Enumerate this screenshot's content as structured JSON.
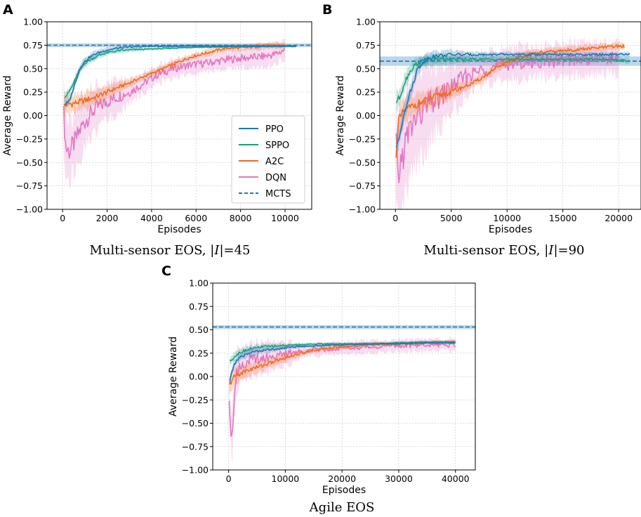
{
  "colors": {
    "PPO": "#1f77b4",
    "SPPO": "#17a37a",
    "A2C": "#f26b1d",
    "DQN": "#e377c2",
    "MCTS": "#1f77b4",
    "MCTS_band": "#a6c8e6"
  },
  "chart_data": [
    {
      "panel": "A",
      "type": "line",
      "caption_prefix": "Multi-sensor EOS, |",
      "caption_italic": "I",
      "caption_suffix": "|=45",
      "xlabel": "Episodes",
      "ylabel": "Average Reward",
      "xlim": [
        -700,
        11200
      ],
      "ylim": [
        -1.0,
        1.0
      ],
      "xticks": [
        0,
        2000,
        4000,
        6000,
        8000,
        10000
      ],
      "xtick_labels": [
        "0",
        "2000",
        "4000",
        "6000",
        "8000",
        "10000"
      ],
      "yticks": [
        -1.0,
        -0.75,
        -0.5,
        -0.25,
        0.0,
        0.25,
        0.5,
        0.75,
        1.0
      ],
      "ytick_labels": [
        "−1.00",
        "−0.75",
        "−0.50",
        "−0.25",
        "0.00",
        "0.25",
        "0.50",
        "0.75",
        "1.00"
      ],
      "grid": true,
      "legend": {
        "placement": "lower-right",
        "entries": [
          {
            "name": "PPO",
            "style": "solid"
          },
          {
            "name": "SPPO",
            "style": "solid"
          },
          {
            "name": "A2C",
            "style": "solid"
          },
          {
            "name": "DQN",
            "style": "solid"
          },
          {
            "name": "MCTS",
            "style": "dashed"
          }
        ]
      },
      "mcts": {
        "value": 0.75,
        "band": [
          0.73,
          0.77
        ]
      },
      "series": [
        {
          "name": "PPO",
          "x": [
            100,
            300,
            500,
            700,
            900,
            1200,
            1500,
            2000,
            2500,
            3000,
            4000,
            5000,
            6000,
            7000,
            8000,
            9000,
            10000,
            10500
          ],
          "y": [
            0.12,
            0.15,
            0.3,
            0.45,
            0.55,
            0.62,
            0.66,
            0.7,
            0.72,
            0.73,
            0.74,
            0.74,
            0.74,
            0.74,
            0.74,
            0.74,
            0.74,
            0.74
          ],
          "band": 0.02
        },
        {
          "name": "SPPO",
          "x": [
            100,
            200,
            400,
            600,
            800,
            1000,
            1300,
            1600,
            2000,
            2500,
            3000,
            4000,
            5000,
            6000,
            7000,
            8000,
            9000,
            10000,
            10500
          ],
          "y": [
            0.2,
            0.22,
            0.3,
            0.4,
            0.5,
            0.56,
            0.6,
            0.64,
            0.67,
            0.69,
            0.7,
            0.71,
            0.72,
            0.73,
            0.73,
            0.74,
            0.74,
            0.74,
            0.74
          ],
          "band": 0.02
        },
        {
          "name": "A2C",
          "x": [
            50,
            200,
            500,
            1000,
            1500,
            2000,
            2500,
            3000,
            3500,
            4000,
            4500,
            5000,
            5500,
            6000,
            6500,
            7000,
            7500,
            8000,
            8500,
            9000,
            9500,
            10000
          ],
          "y": [
            0.1,
            0.12,
            0.13,
            0.16,
            0.2,
            0.25,
            0.3,
            0.35,
            0.4,
            0.45,
            0.5,
            0.55,
            0.6,
            0.64,
            0.67,
            0.7,
            0.72,
            0.72,
            0.73,
            0.74,
            0.75,
            0.74
          ],
          "band": 0.04
        },
        {
          "name": "DQN",
          "x": [
            50,
            150,
            300,
            500,
            700,
            900,
            1200,
            1500,
            2000,
            2500,
            3000,
            3500,
            4000,
            4500,
            5000,
            5500,
            6000,
            6500,
            7000,
            7500,
            8000,
            8500,
            9000,
            9500,
            10000
          ],
          "y": [
            0.0,
            -0.35,
            -0.38,
            -0.3,
            -0.2,
            -0.1,
            0.0,
            0.08,
            0.15,
            0.2,
            0.25,
            0.32,
            0.4,
            0.46,
            0.5,
            0.53,
            0.55,
            0.56,
            0.58,
            0.6,
            0.61,
            0.62,
            0.63,
            0.65,
            0.7
          ],
          "band": 0.12
        }
      ]
    },
    {
      "panel": "B",
      "type": "line",
      "caption_prefix": "Multi-sensor EOS, |",
      "caption_italic": "I",
      "caption_suffix": "|=90",
      "xlabel": "Episodes",
      "ylabel": "Average Reward",
      "xlim": [
        -1400,
        22000
      ],
      "ylim": [
        -1.0,
        1.0
      ],
      "xticks": [
        0,
        5000,
        10000,
        15000,
        20000
      ],
      "xtick_labels": [
        "0",
        "5000",
        "10000",
        "15000",
        "20000"
      ],
      "yticks": [
        -1.0,
        -0.75,
        -0.5,
        -0.25,
        0.0,
        0.25,
        0.5,
        0.75,
        1.0
      ],
      "ytick_labels": [
        "−1.00",
        "−0.75",
        "−0.50",
        "−0.25",
        "0.00",
        "0.25",
        "0.50",
        "0.75",
        "1.00"
      ],
      "grid": true,
      "mcts": {
        "value": 0.58,
        "band": [
          0.53,
          0.63
        ]
      },
      "series": [
        {
          "name": "PPO",
          "x": [
            100,
            400,
            800,
            1200,
            1600,
            2000,
            2500,
            3000,
            4000,
            5000,
            7000,
            10000,
            13000,
            16000,
            19000,
            21000
          ],
          "y": [
            -0.35,
            -0.2,
            0.05,
            0.2,
            0.35,
            0.5,
            0.58,
            0.62,
            0.64,
            0.65,
            0.65,
            0.65,
            0.65,
            0.65,
            0.65,
            0.65
          ],
          "band": 0.04
        },
        {
          "name": "SPPO",
          "x": [
            100,
            400,
            800,
            1200,
            1600,
            2000,
            2500,
            3000,
            4000,
            5000,
            7000,
            10000,
            13000,
            16000,
            19000,
            21000
          ],
          "y": [
            0.15,
            0.2,
            0.35,
            0.45,
            0.52,
            0.56,
            0.58,
            0.59,
            0.6,
            0.6,
            0.6,
            0.6,
            0.6,
            0.6,
            0.6,
            0.58
          ],
          "band": 0.04
        },
        {
          "name": "A2C",
          "x": [
            50,
            300,
            800,
            1500,
            2500,
            3500,
            5000,
            6000,
            7000,
            8000,
            9000,
            10000,
            11000,
            12000,
            13000,
            14000,
            15000,
            16000,
            17000,
            18000,
            19000,
            20000,
            20500
          ],
          "y": [
            -0.4,
            -0.05,
            0.05,
            0.1,
            0.15,
            0.2,
            0.25,
            0.3,
            0.35,
            0.42,
            0.5,
            0.57,
            0.62,
            0.65,
            0.67,
            0.68,
            0.69,
            0.7,
            0.71,
            0.72,
            0.73,
            0.74,
            0.74
          ],
          "band": 0.05
        },
        {
          "name": "DQN",
          "x": [
            50,
            200,
            400,
            700,
            1000,
            1500,
            2000,
            2500,
            3000,
            4000,
            5000,
            6000,
            7000,
            8000,
            9000,
            10000,
            12000,
            14000,
            16000,
            18000,
            20000
          ],
          "y": [
            -0.3,
            -0.7,
            -0.55,
            -0.4,
            -0.25,
            -0.1,
            0.0,
            0.05,
            0.12,
            0.2,
            0.3,
            0.4,
            0.45,
            0.5,
            0.52,
            0.55,
            0.57,
            0.58,
            0.6,
            0.61,
            0.61
          ],
          "band": 0.2
        }
      ]
    },
    {
      "panel": "C",
      "type": "line",
      "caption_prefix": "Agile EOS",
      "caption_italic": "",
      "caption_suffix": "",
      "xlabel": "Episodes",
      "ylabel": "Average Reward",
      "xlim": [
        -2800,
        43500
      ],
      "ylim": [
        -1.0,
        1.0
      ],
      "xticks": [
        0,
        10000,
        20000,
        30000,
        40000
      ],
      "xtick_labels": [
        "0",
        "10000",
        "20000",
        "30000",
        "40000"
      ],
      "yticks": [
        -1.0,
        -0.75,
        -0.5,
        -0.25,
        0.0,
        0.25,
        0.5,
        0.75,
        1.0
      ],
      "ytick_labels": [
        "−1.00",
        "−0.75",
        "−0.50",
        "−0.25",
        "0.00",
        "0.25",
        "0.50",
        "0.75",
        "1.00"
      ],
      "grid": true,
      "mcts": {
        "value": 0.53,
        "band": [
          0.51,
          0.55
        ]
      },
      "series": [
        {
          "name": "PPO",
          "x": [
            200,
            800,
            1500,
            2500,
            4000,
            6000,
            9000,
            12000,
            16000,
            20000,
            25000,
            30000,
            35000,
            40000
          ],
          "y": [
            -0.05,
            0.1,
            0.18,
            0.22,
            0.26,
            0.28,
            0.3,
            0.32,
            0.33,
            0.34,
            0.35,
            0.35,
            0.36,
            0.36
          ],
          "band": 0.02
        },
        {
          "name": "SPPO",
          "x": [
            200,
            800,
            1500,
            2500,
            4000,
            6000,
            9000,
            12000,
            16000,
            20000,
            25000,
            30000,
            35000,
            40000
          ],
          "y": [
            0.16,
            0.2,
            0.24,
            0.27,
            0.3,
            0.32,
            0.33,
            0.34,
            0.35,
            0.35,
            0.35,
            0.36,
            0.37,
            0.37
          ],
          "band": 0.02
        },
        {
          "name": "A2C",
          "x": [
            100,
            500,
            1000,
            2000,
            3000,
            5000,
            7000,
            9000,
            11000,
            14000,
            17000,
            20000,
            25000,
            30000,
            35000,
            40000
          ],
          "y": [
            -0.1,
            -0.05,
            0.0,
            0.03,
            0.06,
            0.1,
            0.14,
            0.18,
            0.22,
            0.27,
            0.3,
            0.32,
            0.34,
            0.35,
            0.36,
            0.37
          ],
          "band": 0.03
        },
        {
          "name": "DQN",
          "x": [
            100,
            300,
            600,
            900,
            1200,
            1600,
            2000,
            3000,
            4000,
            6000,
            8000,
            10000,
            14000,
            18000,
            22000,
            26000,
            30000,
            35000,
            40000
          ],
          "y": [
            -0.2,
            -0.5,
            -0.65,
            -0.3,
            -0.05,
            0.08,
            0.12,
            0.15,
            0.18,
            0.2,
            0.22,
            0.24,
            0.28,
            0.3,
            0.31,
            0.32,
            0.33,
            0.34,
            0.34
          ],
          "band": 0.08
        }
      ]
    }
  ]
}
